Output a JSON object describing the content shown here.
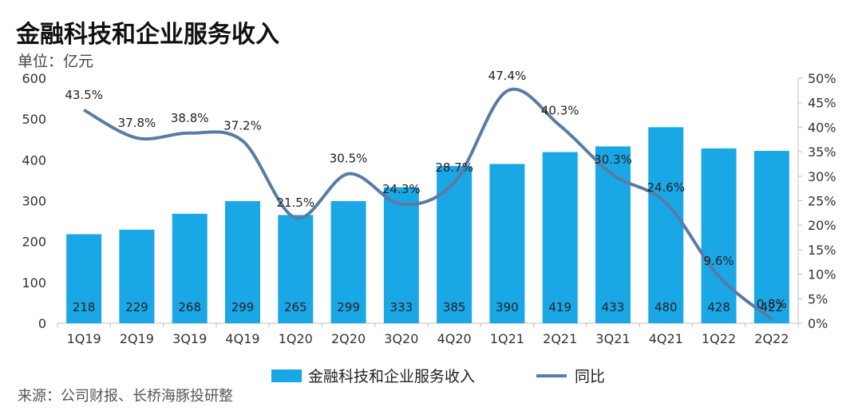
{
  "header": {
    "title": "金融科技和企业服务收入",
    "unit": "单位：亿元"
  },
  "source": "来源：公司财报、长桥海豚投研整",
  "colors": {
    "bar": "#1aa7e6",
    "line": "#5b7ba6"
  },
  "chart_data": {
    "type": "bar+line",
    "categories": [
      "1Q19",
      "2Q19",
      "3Q19",
      "4Q19",
      "1Q20",
      "2Q20",
      "3Q20",
      "4Q20",
      "1Q21",
      "2Q21",
      "3Q21",
      "4Q21",
      "1Q22",
      "2Q22"
    ],
    "series": [
      {
        "name": "金融科技和企业服务收入",
        "type": "bar",
        "axis": "left",
        "values": [
          218,
          229,
          268,
          299,
          265,
          299,
          333,
          385,
          390,
          419,
          433,
          480,
          428,
          422
        ],
        "labels": [
          "218",
          "229",
          "268",
          "299",
          "265",
          "299",
          "333",
          "385",
          "390",
          "419",
          "433",
          "480",
          "428",
          "422"
        ]
      },
      {
        "name": "同比",
        "type": "line",
        "axis": "right",
        "values": [
          43.5,
          37.8,
          38.8,
          37.2,
          21.5,
          30.5,
          24.3,
          28.7,
          47.4,
          40.3,
          30.3,
          24.6,
          9.6,
          0.8
        ],
        "labels": [
          "43.5%",
          "37.8%",
          "38.8%",
          "37.2%",
          "21.5%",
          "30.5%",
          "24.3%",
          "28.7%",
          "47.4%",
          "40.3%",
          "30.3%",
          "24.6%",
          "9.6%",
          "0.8%"
        ]
      }
    ],
    "y_left": {
      "ylim": [
        0,
        600
      ],
      "ticks": [
        "0",
        "100",
        "200",
        "300",
        "400",
        "500",
        "600"
      ]
    },
    "y_right": {
      "ylim": [
        0,
        50
      ],
      "ticks": [
        "0%",
        "5%",
        "10%",
        "15%",
        "20%",
        "25%",
        "30%",
        "35%",
        "40%",
        "45%",
        "50%"
      ]
    },
    "legend_position": "bottom-center",
    "grid": false
  }
}
